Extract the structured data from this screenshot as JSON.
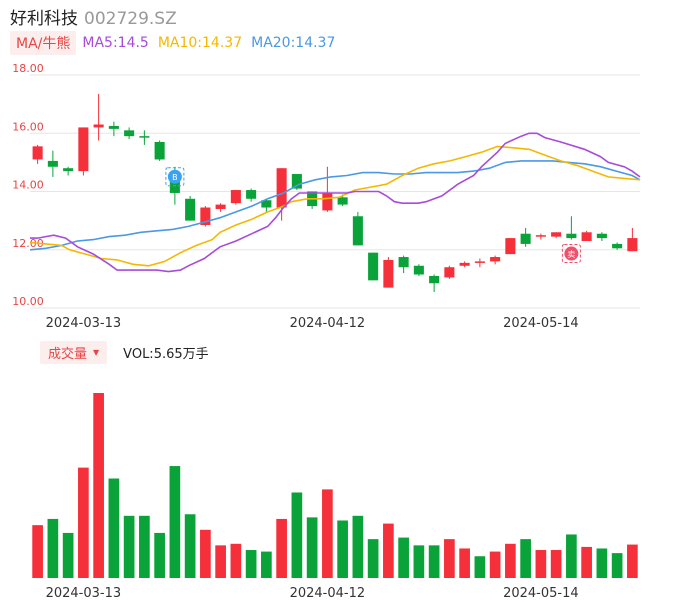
{
  "header": {
    "name": "好利科技",
    "code": "002729.SZ"
  },
  "ma": {
    "selector_label": "MA/牛熊",
    "items": [
      {
        "label": "MA5:14.5",
        "color": "#a64bdc"
      },
      {
        "label": "MA10:14.37",
        "color": "#f5b800"
      },
      {
        "label": "MA20:14.37",
        "color": "#4a98e6"
      }
    ]
  },
  "volume": {
    "selector_label": "成交量",
    "label": "VOL:5.65万手"
  },
  "colors": {
    "up": "#f5303a",
    "down": "#0aa33a",
    "grid": "#e6e6e6",
    "ytick": "#e84545"
  },
  "markers": [
    {
      "icon": "buy-marker-icon",
      "glyph": "B",
      "index": 9,
      "color": "#3aa3ef"
    },
    {
      "icon": "sell-marker-icon",
      "glyph": "卖",
      "index": 35,
      "color": "#f0506a"
    }
  ],
  "chart_data": {
    "type": "candlestick",
    "y_ticks": [
      "18.00",
      "16.00",
      "14.00",
      "12.00",
      "10.00"
    ],
    "ylim": [
      10,
      18
    ],
    "x_ticks": [
      {
        "label": "2024-03-13",
        "index": 3
      },
      {
        "label": "2024-04-12",
        "index": 19
      },
      {
        "label": "2024-05-14",
        "index": 33
      }
    ],
    "candles": [
      {
        "o": 15.1,
        "h": 15.6,
        "l": 14.95,
        "c": 15.55
      },
      {
        "o": 15.05,
        "h": 15.4,
        "l": 14.5,
        "c": 14.85
      },
      {
        "o": 14.8,
        "h": 14.85,
        "l": 14.55,
        "c": 14.7
      },
      {
        "o": 14.7,
        "h": 16.2,
        "l": 14.55,
        "c": 16.2
      },
      {
        "o": 16.2,
        "h": 17.35,
        "l": 15.75,
        "c": 16.3
      },
      {
        "o": 16.25,
        "h": 16.4,
        "l": 15.9,
        "c": 16.15
      },
      {
        "o": 16.1,
        "h": 16.2,
        "l": 15.8,
        "c": 15.9
      },
      {
        "o": 15.9,
        "h": 16.1,
        "l": 15.6,
        "c": 15.85
      },
      {
        "o": 15.7,
        "h": 15.75,
        "l": 15.05,
        "c": 15.1
      },
      {
        "o": 14.5,
        "h": 14.85,
        "l": 13.55,
        "c": 13.95
      },
      {
        "o": 13.75,
        "h": 13.85,
        "l": 13.0,
        "c": 13.0
      },
      {
        "o": 12.85,
        "h": 13.5,
        "l": 12.8,
        "c": 13.45
      },
      {
        "o": 13.4,
        "h": 13.6,
        "l": 13.3,
        "c": 13.55
      },
      {
        "o": 13.6,
        "h": 14.05,
        "l": 13.55,
        "c": 14.05
      },
      {
        "o": 14.05,
        "h": 14.1,
        "l": 13.65,
        "c": 13.75
      },
      {
        "o": 13.7,
        "h": 13.75,
        "l": 13.3,
        "c": 13.45
      },
      {
        "o": 13.45,
        "h": 14.8,
        "l": 13.0,
        "c": 14.8
      },
      {
        "o": 14.6,
        "h": 14.6,
        "l": 14.05,
        "c": 14.1
      },
      {
        "o": 14.0,
        "h": 14.0,
        "l": 13.4,
        "c": 13.5
      },
      {
        "o": 13.35,
        "h": 14.85,
        "l": 13.3,
        "c": 13.95
      },
      {
        "o": 13.8,
        "h": 13.9,
        "l": 13.5,
        "c": 13.55
      },
      {
        "o": 13.15,
        "h": 13.3,
        "l": 12.15,
        "c": 12.15
      },
      {
        "o": 11.9,
        "h": 11.9,
        "l": 10.95,
        "c": 10.95
      },
      {
        "o": 10.7,
        "h": 11.75,
        "l": 10.7,
        "c": 11.65
      },
      {
        "o": 11.75,
        "h": 11.8,
        "l": 11.2,
        "c": 11.4
      },
      {
        "o": 11.45,
        "h": 11.5,
        "l": 11.1,
        "c": 11.15
      },
      {
        "o": 11.1,
        "h": 11.15,
        "l": 10.55,
        "c": 10.85
      },
      {
        "o": 11.05,
        "h": 11.45,
        "l": 11.0,
        "c": 11.4
      },
      {
        "o": 11.45,
        "h": 11.6,
        "l": 11.4,
        "c": 11.55
      },
      {
        "o": 11.55,
        "h": 11.7,
        "l": 11.4,
        "c": 11.6
      },
      {
        "o": 11.6,
        "h": 11.8,
        "l": 11.5,
        "c": 11.75
      },
      {
        "o": 11.85,
        "h": 12.4,
        "l": 11.85,
        "c": 12.4
      },
      {
        "o": 12.55,
        "h": 12.75,
        "l": 12.1,
        "c": 12.2
      },
      {
        "o": 12.45,
        "h": 12.55,
        "l": 12.35,
        "c": 12.5
      },
      {
        "o": 12.45,
        "h": 12.6,
        "l": 12.4,
        "c": 12.6
      },
      {
        "o": 12.55,
        "h": 13.15,
        "l": 12.35,
        "c": 12.4
      },
      {
        "o": 12.3,
        "h": 12.65,
        "l": 12.3,
        "c": 12.6
      },
      {
        "o": 12.55,
        "h": 12.6,
        "l": 12.3,
        "c": 12.4
      },
      {
        "o": 12.2,
        "h": 12.25,
        "l": 12.0,
        "c": 12.05
      },
      {
        "o": 11.95,
        "h": 12.75,
        "l": 11.95,
        "c": 12.4
      }
    ],
    "ma5": [
      [
        0,
        12.4
      ],
      [
        2,
        12.4
      ],
      [
        4,
        12.45
      ],
      [
        6,
        12.5
      ],
      [
        9,
        12.4
      ],
      [
        12,
        12.1
      ],
      [
        16,
        11.85
      ],
      [
        20,
        11.5
      ],
      [
        22,
        11.3
      ],
      [
        26,
        11.3
      ],
      [
        32,
        11.3
      ],
      [
        35,
        11.25
      ],
      [
        38,
        11.3
      ],
      [
        40,
        11.45
      ],
      [
        44,
        11.7
      ],
      [
        48,
        12.1
      ],
      [
        52,
        12.3
      ],
      [
        56,
        12.55
      ],
      [
        60,
        12.8
      ],
      [
        62,
        13.1
      ],
      [
        64,
        13.45
      ],
      [
        66,
        13.75
      ],
      [
        68,
        13.95
      ],
      [
        72,
        13.95
      ],
      [
        76,
        13.95
      ],
      [
        80,
        13.95
      ],
      [
        82,
        14.0
      ],
      [
        84,
        14.0
      ],
      [
        88,
        14.0
      ],
      [
        90,
        13.85
      ],
      [
        92,
        13.65
      ],
      [
        94,
        13.6
      ],
      [
        98,
        13.6
      ],
      [
        100,
        13.65
      ],
      [
        104,
        13.85
      ],
      [
        108,
        14.25
      ],
      [
        112,
        14.55
      ],
      [
        114,
        14.85
      ],
      [
        118,
        15.35
      ],
      [
        120,
        15.65
      ],
      [
        124,
        15.9
      ],
      [
        126,
        16.0
      ],
      [
        128,
        16.0
      ],
      [
        130,
        15.85
      ],
      [
        134,
        15.7
      ],
      [
        140,
        15.45
      ],
      [
        144,
        15.2
      ],
      [
        146,
        15.0
      ],
      [
        150,
        14.85
      ],
      [
        152,
        14.7
      ],
      [
        154,
        14.5
      ]
    ],
    "ma10": [
      [
        0,
        12.25
      ],
      [
        4,
        12.2
      ],
      [
        8,
        12.15
      ],
      [
        10,
        12.0
      ],
      [
        14,
        11.85
      ],
      [
        18,
        11.7
      ],
      [
        22,
        11.65
      ],
      [
        26,
        11.5
      ],
      [
        30,
        11.45
      ],
      [
        34,
        11.6
      ],
      [
        38,
        11.9
      ],
      [
        42,
        12.15
      ],
      [
        46,
        12.35
      ],
      [
        48,
        12.6
      ],
      [
        52,
        12.85
      ],
      [
        56,
        13.05
      ],
      [
        60,
        13.3
      ],
      [
        64,
        13.5
      ],
      [
        66,
        13.65
      ],
      [
        70,
        13.75
      ],
      [
        74,
        13.75
      ],
      [
        78,
        13.8
      ],
      [
        82,
        14.05
      ],
      [
        86,
        14.15
      ],
      [
        90,
        14.25
      ],
      [
        94,
        14.55
      ],
      [
        98,
        14.8
      ],
      [
        102,
        14.95
      ],
      [
        106,
        15.05
      ],
      [
        110,
        15.2
      ],
      [
        114,
        15.35
      ],
      [
        118,
        15.55
      ],
      [
        122,
        15.5
      ],
      [
        126,
        15.45
      ],
      [
        130,
        15.25
      ],
      [
        134,
        15.05
      ],
      [
        138,
        14.9
      ],
      [
        142,
        14.7
      ],
      [
        146,
        14.5
      ],
      [
        150,
        14.45
      ],
      [
        154,
        14.4
      ]
    ],
    "ma20": [
      [
        0,
        12.0
      ],
      [
        4,
        12.05
      ],
      [
        8,
        12.15
      ],
      [
        12,
        12.3
      ],
      [
        16,
        12.35
      ],
      [
        20,
        12.45
      ],
      [
        24,
        12.5
      ],
      [
        28,
        12.6
      ],
      [
        32,
        12.65
      ],
      [
        36,
        12.7
      ],
      [
        40,
        12.8
      ],
      [
        44,
        12.95
      ],
      [
        48,
        13.1
      ],
      [
        52,
        13.3
      ],
      [
        56,
        13.5
      ],
      [
        60,
        13.75
      ],
      [
        64,
        13.95
      ],
      [
        68,
        14.25
      ],
      [
        72,
        14.4
      ],
      [
        76,
        14.5
      ],
      [
        80,
        14.55
      ],
      [
        84,
        14.65
      ],
      [
        88,
        14.65
      ],
      [
        92,
        14.6
      ],
      [
        96,
        14.6
      ],
      [
        100,
        14.65
      ],
      [
        104,
        14.65
      ],
      [
        108,
        14.65
      ],
      [
        112,
        14.7
      ],
      [
        116,
        14.8
      ],
      [
        120,
        15.0
      ],
      [
        124,
        15.05
      ],
      [
        128,
        15.05
      ],
      [
        132,
        15.05
      ],
      [
        136,
        15.0
      ],
      [
        140,
        14.95
      ],
      [
        144,
        14.85
      ],
      [
        148,
        14.7
      ],
      [
        152,
        14.55
      ],
      [
        154,
        14.4
      ]
    ],
    "ma_x_scale": 154,
    "volume": [
      {
        "v": 3.4,
        "up": true
      },
      {
        "v": 3.8,
        "up": false
      },
      {
        "v": 2.9,
        "up": false
      },
      {
        "v": 7.1,
        "up": true
      },
      {
        "v": 11.9,
        "up": true
      },
      {
        "v": 6.4,
        "up": false
      },
      {
        "v": 4.0,
        "up": false
      },
      {
        "v": 4.0,
        "up": false
      },
      {
        "v": 2.9,
        "up": false
      },
      {
        "v": 7.2,
        "up": false
      },
      {
        "v": 4.1,
        "up": false
      },
      {
        "v": 3.1,
        "up": true
      },
      {
        "v": 2.1,
        "up": true
      },
      {
        "v": 2.2,
        "up": true
      },
      {
        "v": 1.8,
        "up": false
      },
      {
        "v": 1.7,
        "up": false
      },
      {
        "v": 3.8,
        "up": true
      },
      {
        "v": 5.5,
        "up": false
      },
      {
        "v": 3.9,
        "up": false
      },
      {
        "v": 5.7,
        "up": true
      },
      {
        "v": 3.7,
        "up": false
      },
      {
        "v": 4.0,
        "up": false
      },
      {
        "v": 2.5,
        "up": false
      },
      {
        "v": 3.5,
        "up": true
      },
      {
        "v": 2.6,
        "up": false
      },
      {
        "v": 2.1,
        "up": false
      },
      {
        "v": 2.1,
        "up": false
      },
      {
        "v": 2.5,
        "up": true
      },
      {
        "v": 1.9,
        "up": true
      },
      {
        "v": 1.4,
        "up": false
      },
      {
        "v": 1.7,
        "up": true
      },
      {
        "v": 2.2,
        "up": true
      },
      {
        "v": 2.5,
        "up": false
      },
      {
        "v": 1.8,
        "up": true
      },
      {
        "v": 1.8,
        "up": true
      },
      {
        "v": 2.8,
        "up": false
      },
      {
        "v": 2.0,
        "up": true
      },
      {
        "v": 1.9,
        "up": false
      },
      {
        "v": 1.6,
        "up": false
      },
      {
        "v": 2.15,
        "up": true
      }
    ]
  }
}
